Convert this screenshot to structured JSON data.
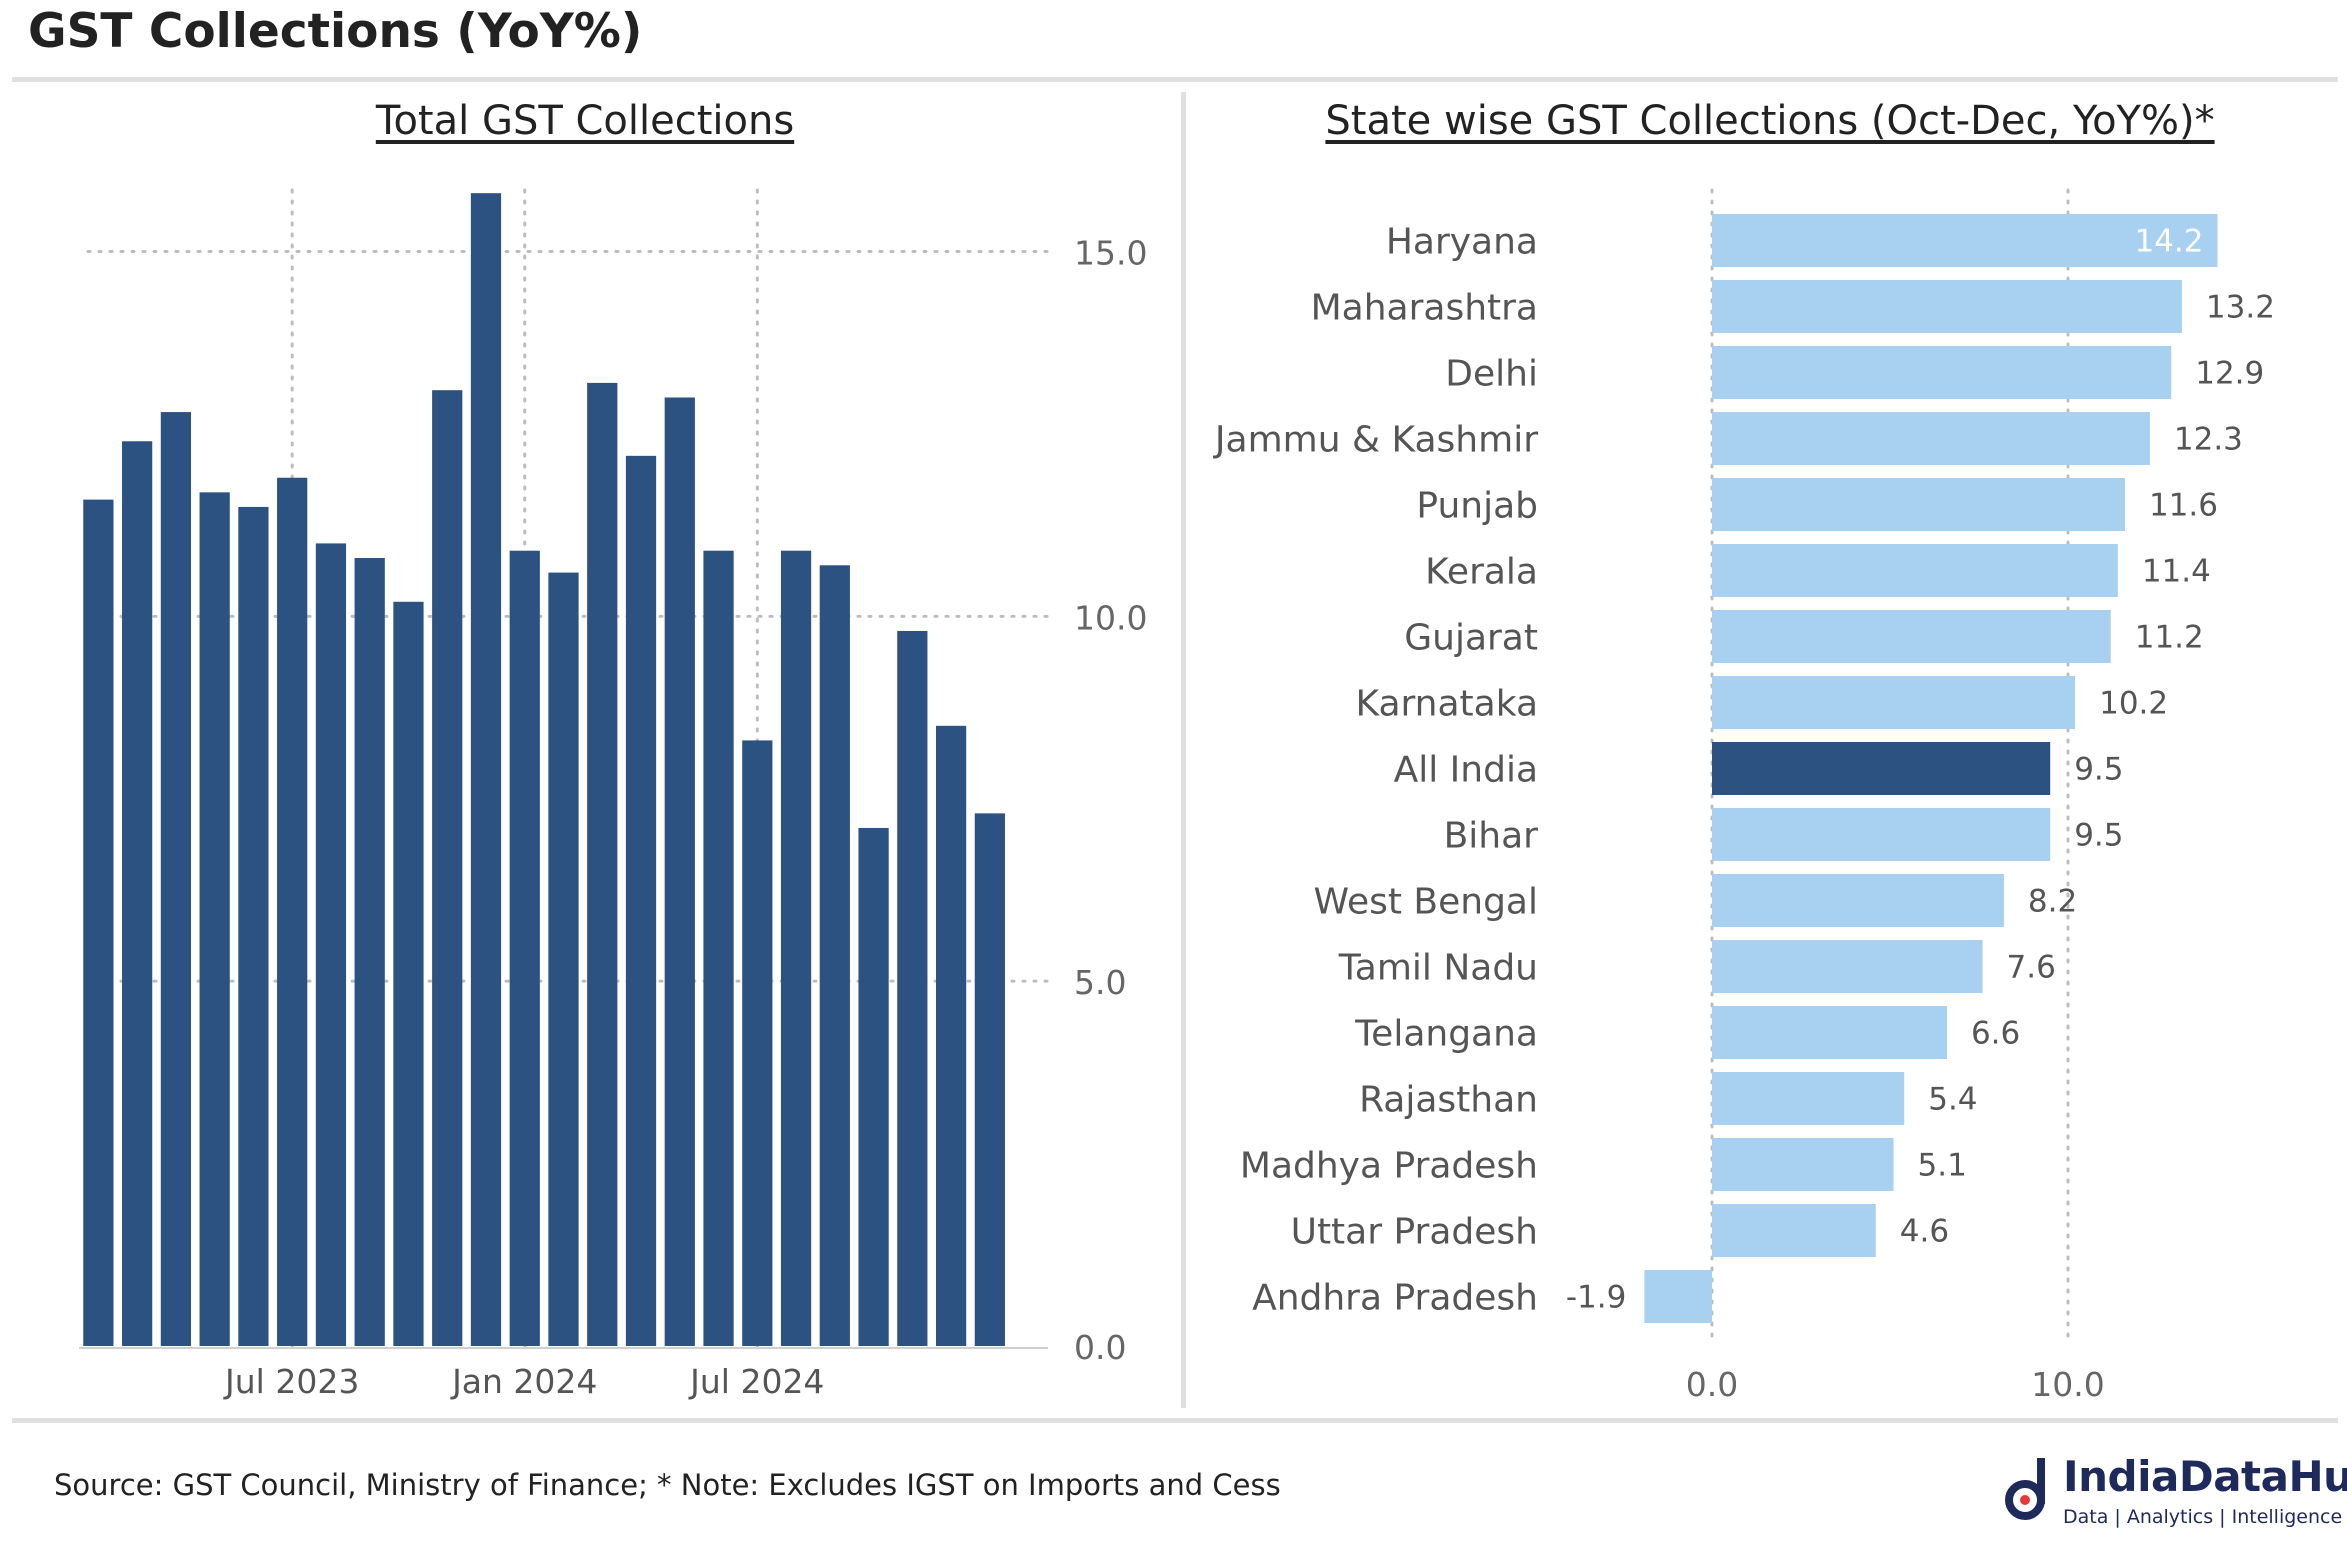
{
  "title": "GST Collections (YoY%)",
  "footer": {
    "source": "Source: GST Council, Ministry of Finance; * Note: Excludes IGST on Imports and Cess"
  },
  "logo": {
    "name": "IndiaDataHub",
    "tagline": "Data | Analytics | Intelligence",
    "color": "#1e2a5c"
  },
  "chart_data": [
    {
      "type": "bar",
      "title": "Total GST Collections",
      "x": [
        "2023-02",
        "2023-03",
        "2023-04",
        "2023-05",
        "2023-06",
        "2023-07",
        "2023-08",
        "2023-09",
        "2023-10",
        "2023-11",
        "2023-12",
        "2024-01",
        "2024-02",
        "2024-03",
        "2024-04",
        "2024-05",
        "2024-06",
        "2024-07",
        "2024-08",
        "2024-09",
        "2024-10",
        "2024-11",
        "2024-12",
        "2025-01",
        "2025-02"
      ],
      "values": [
        11.6,
        12.4,
        12.8,
        11.7,
        11.5,
        11.9,
        11.0,
        10.8,
        10.2,
        13.1,
        15.8,
        10.9,
        10.6,
        13.2,
        12.2,
        13.0,
        10.9,
        8.3,
        10.9,
        10.7,
        7.1,
        9.8,
        8.5,
        7.3,
        0
      ],
      "x_tick_labels": [
        "Jul 2023",
        "Jan 2024",
        "Jul 2024"
      ],
      "y_ticks": [
        "0.0",
        "5.0",
        "10.0",
        "15.0"
      ],
      "ylim": [
        0,
        16.2
      ],
      "y_axis_side": "right",
      "grid": true,
      "color": "#2c5282"
    },
    {
      "type": "bar",
      "orientation": "horizontal",
      "title": "State wise GST Collections (Oct-Dec, YoY%)*",
      "categories": [
        "Haryana",
        "Maharashtra",
        "Delhi",
        "Jammu & Kashmir",
        "Punjab",
        "Kerala",
        "Gujarat",
        "Karnataka",
        "All India",
        "Bihar",
        "West Bengal",
        "Tamil Nadu",
        "Telangana",
        "Rajasthan",
        "Madhya Pradesh",
        "Uttar Pradesh",
        "Andhra Pradesh"
      ],
      "values": [
        14.2,
        13.2,
        12.9,
        12.3,
        11.6,
        11.4,
        11.2,
        10.2,
        9.5,
        9.5,
        8.2,
        7.6,
        6.6,
        5.4,
        5.1,
        4.6,
        -1.9
      ],
      "labels": [
        "14.2",
        "13.2",
        "12.9",
        "12.3",
        "11.6",
        "11.4",
        "11.2",
        "10.2",
        "9.5",
        "9.5",
        "8.2",
        "7.6",
        "6.6",
        "5.4",
        "5.1",
        "4.6",
        "-1.9"
      ],
      "highlight": "All India",
      "x_ticks": [
        "0.0",
        "10.0"
      ],
      "xlim": [
        -2.0,
        14.5
      ],
      "grid": true,
      "color": "#a8d0f0",
      "highlight_color": "#2c5282"
    }
  ]
}
